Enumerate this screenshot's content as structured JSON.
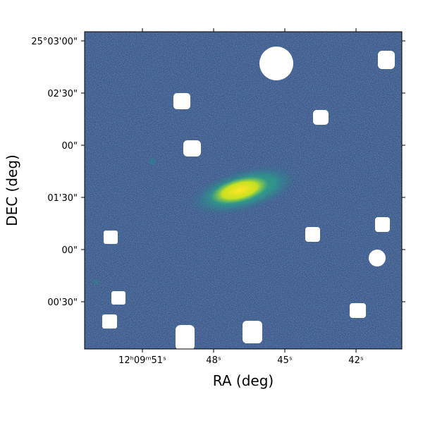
{
  "chart_data": {
    "type": "image",
    "xlabel": "RA (deg)",
    "ylabel": "DEC (deg)",
    "xtick_labels": [
      "12ʰ09ᵐ51ˢ",
      "48ˢ",
      "45ˢ",
      "42ˢ"
    ],
    "ytick_labels": [
      "25°03'00\"",
      "02'30\"",
      "00\"",
      "01'30\"",
      "00\"",
      "00'30\""
    ]
  }
}
